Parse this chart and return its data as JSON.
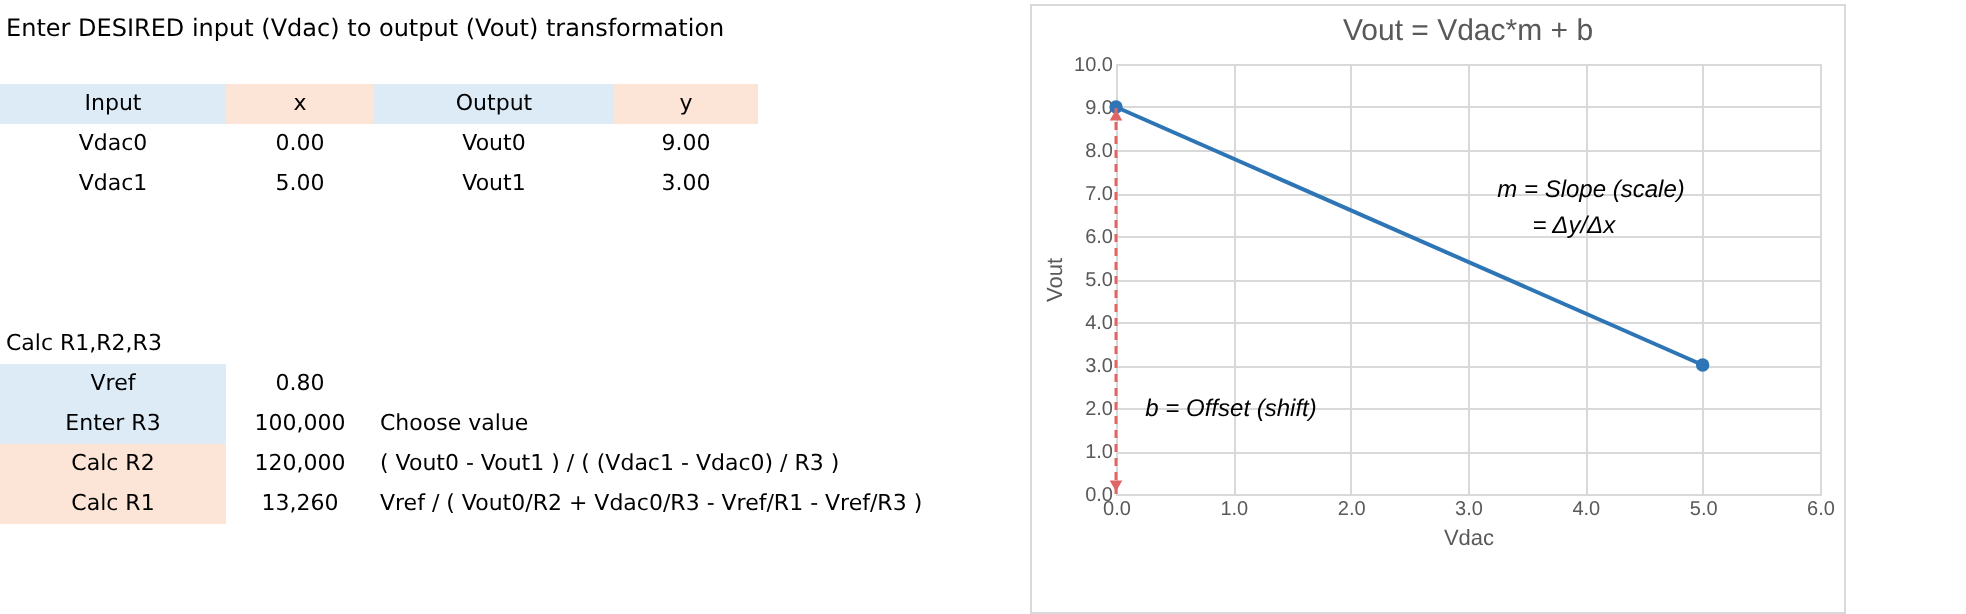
{
  "chart_data": [
    {
      "type": "other",
      "title": "Enter DESIRED input (Vdac) to output (Vout) transformation",
      "annotations": [
        "Input",
        "x",
        "Output",
        "y",
        "Vdac0",
        "0.00",
        "Vout0",
        "9.00",
        "Vdac1",
        "5.00",
        "Vout1",
        "3.00",
        "Calc R1,R2,R3",
        "Vref",
        "0.80",
        "Enter R3",
        "100,000",
        "Choose value",
        "Calc R2",
        "120,000",
        "( Vout0 - Vout1 ) / ( (Vdac1 - Vdac0) / R3 )",
        "Calc R1",
        "13,260",
        "Vref / ( Vout0/R2 + Vdac0/R3 - Vref/R1 - Vref/R3 )"
      ]
    },
    {
      "type": "line",
      "title": "Vout = Vdac*m + b",
      "xlabel": "Vdac",
      "ylabel": "Vout",
      "series": [
        {
          "x": [
            0,
            5
          ],
          "values": [
            9,
            3
          ],
          "color": "#2e75b6"
        }
      ],
      "xlim": [
        0,
        6
      ],
      "xticks": [
        {
          "value": 0,
          "label": "0.0"
        },
        {
          "value": 1,
          "label": "1.0"
        },
        {
          "value": 2,
          "label": "2.0"
        },
        {
          "value": 3,
          "label": "3.0"
        },
        {
          "value": 4,
          "label": "4.0"
        },
        {
          "value": 5,
          "label": "5.0"
        },
        {
          "value": 6,
          "label": "6.0"
        }
      ],
      "ylim": [
        0,
        10
      ],
      "yticks": [
        {
          "value": 0,
          "label": "0.0"
        },
        {
          "value": 1,
          "label": "1.0"
        },
        {
          "value": 2,
          "label": "2.0"
        },
        {
          "value": 3,
          "label": "3.0"
        },
        {
          "value": 4,
          "label": "4.0"
        },
        {
          "value": 5,
          "label": "5.0"
        },
        {
          "value": 6,
          "label": "6.0"
        },
        {
          "value": 7,
          "label": "7.0"
        },
        {
          "value": 8,
          "label": "8.0"
        },
        {
          "value": 9,
          "label": "9.0"
        },
        {
          "value": 10,
          "label": "10.0"
        }
      ],
      "grid": true,
      "marker": "circle",
      "line_style": "solid",
      "legend": false,
      "annotations": [
        "m = Slope (scale)",
        "= Δy/Δx",
        "b = Offset (shift)"
      ]
    }
  ]
}
